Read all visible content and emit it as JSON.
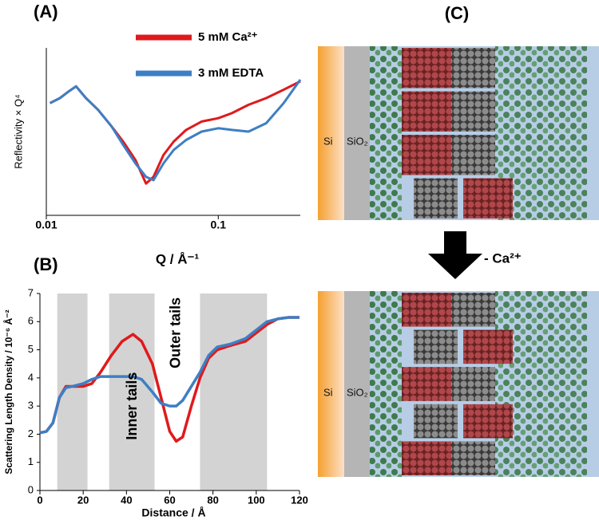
{
  "chart_data": [
    {
      "type": "line",
      "title": "(A)",
      "x_label": "Q / Å⁻¹",
      "y_label": "Reflectivity × Q⁴",
      "xscale": "log",
      "xlim": [
        0.01,
        0.3
      ],
      "xticks": [
        0.01,
        0.1
      ],
      "ylim": [
        0,
        1
      ],
      "legend": "top",
      "x": [
        0.0105,
        0.012,
        0.0135,
        0.0149,
        0.017,
        0.02,
        0.024,
        0.028,
        0.033,
        0.038,
        0.042,
        0.048,
        0.055,
        0.065,
        0.08,
        0.1,
        0.12,
        0.15,
        0.19,
        0.24,
        0.3
      ],
      "series": [
        {
          "name": "5 mM Ca²⁺",
          "color": "#e0191c",
          "values": [
            0.67,
            0.7,
            0.74,
            0.77,
            0.7,
            0.63,
            0.53,
            0.44,
            0.33,
            0.19,
            0.23,
            0.36,
            0.44,
            0.51,
            0.56,
            0.58,
            0.61,
            0.66,
            0.7,
            0.75,
            0.8
          ]
        },
        {
          "name": "3 mM EDTA",
          "color": "#3d7fc4",
          "values": [
            0.67,
            0.7,
            0.74,
            0.77,
            0.7,
            0.63,
            0.53,
            0.42,
            0.31,
            0.23,
            0.21,
            0.31,
            0.39,
            0.45,
            0.5,
            0.52,
            0.51,
            0.5,
            0.55,
            0.67,
            0.81
          ]
        }
      ]
    },
    {
      "type": "line",
      "title": "(B)",
      "x_label": "Distance / Å",
      "y_label": "Scattering Length Density / 10⁻⁶ Å⁻²",
      "xlim": [
        0,
        120
      ],
      "xticks": [
        0,
        20,
        40,
        60,
        80,
        100,
        120
      ],
      "ylim": [
        0,
        7
      ],
      "yticks": [
        0,
        1,
        2,
        3,
        4,
        5,
        6,
        7
      ],
      "bands": [
        [
          8,
          22
        ],
        [
          32,
          53
        ],
        [
          74,
          105
        ]
      ],
      "band_color": "#d3d3d3",
      "annotations": [
        {
          "text": "Inner tails",
          "x": 43,
          "y": 3
        },
        {
          "text": "Outer tails",
          "x": 63,
          "y": 5.6
        }
      ],
      "x": [
        0,
        3,
        6,
        9,
        12,
        15,
        20,
        24,
        28,
        33,
        38,
        43,
        47,
        52,
        56,
        60,
        63,
        66,
        70,
        74,
        78,
        82,
        88,
        95,
        100,
        105,
        110,
        115,
        120
      ],
      "series": [
        {
          "color": "#e0191c",
          "values": [
            2.05,
            2.1,
            2.4,
            3.3,
            3.7,
            3.7,
            3.7,
            3.8,
            4.2,
            4.8,
            5.3,
            5.55,
            5.3,
            4.5,
            3.3,
            2.1,
            1.75,
            1.9,
            3.0,
            4.0,
            4.7,
            5.0,
            5.15,
            5.3,
            5.6,
            5.9,
            6.1,
            6.15,
            6.15
          ]
        },
        {
          "color": "#3d7fc4",
          "values": [
            2.05,
            2.1,
            2.4,
            3.3,
            3.65,
            3.7,
            3.8,
            3.95,
            4.05,
            4.05,
            4.05,
            4.05,
            3.95,
            3.5,
            3.1,
            3.0,
            3.0,
            3.2,
            3.7,
            4.2,
            4.8,
            5.1,
            5.2,
            5.4,
            5.7,
            6.0,
            6.1,
            6.15,
            6.15
          ]
        }
      ]
    }
  ],
  "diagram": {
    "title": "(C)",
    "arrow_label": "- Ca²⁺",
    "panels": [
      {
        "layers": [
          "Si",
          "SiO₂"
        ]
      },
      {
        "layers": [
          "Si",
          "SiO₂"
        ]
      }
    ]
  }
}
